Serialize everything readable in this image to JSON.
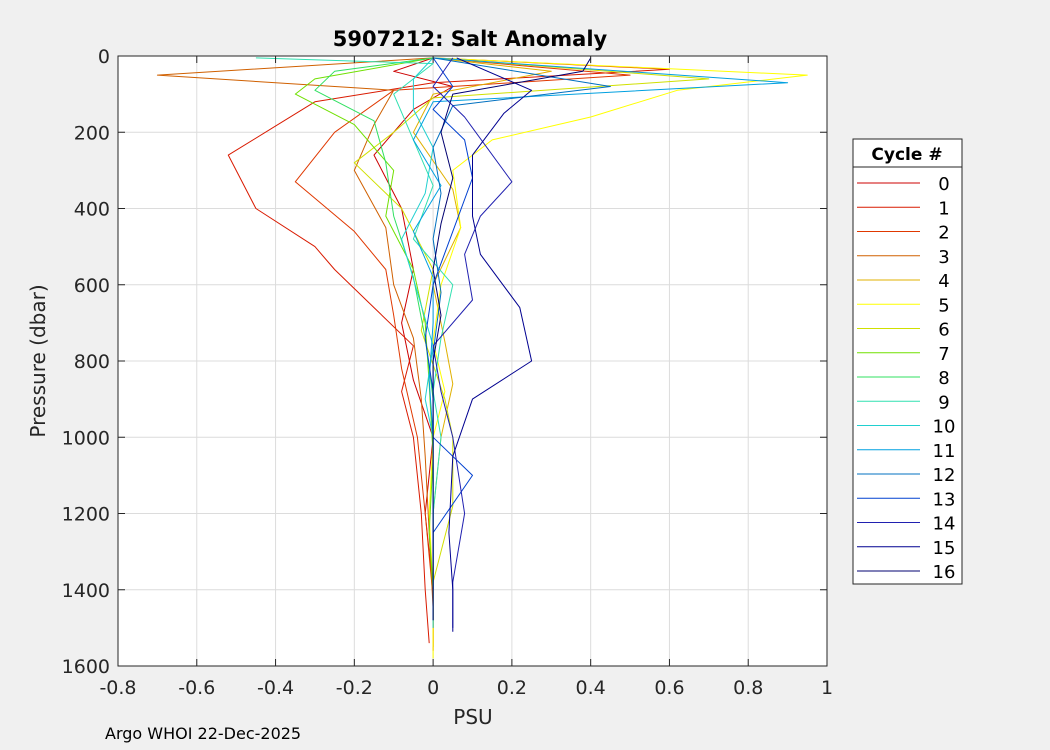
{
  "footer": {
    "text": "Argo WHOI 22-Dec-2025"
  },
  "chart_data": {
    "type": "line",
    "title": "5907212: Salt Anomaly",
    "xlabel": "PSU",
    "ylabel": "Pressure (dbar)",
    "xlim": [
      -0.8,
      1
    ],
    "ylim": [
      0,
      1600
    ],
    "y_reversed": true,
    "grid": true,
    "x_ticks": [
      -0.8,
      -0.6,
      -0.4,
      -0.2,
      0,
      0.2,
      0.4,
      0.6,
      0.8,
      1
    ],
    "x_tick_labels": [
      "-0.8",
      "-0.6",
      "-0.4",
      "-0.2",
      "0",
      "0.2",
      "0.4",
      "0.6",
      "0.8",
      "1"
    ],
    "y_ticks": [
      0,
      200,
      400,
      600,
      800,
      1000,
      1200,
      1400,
      1600
    ],
    "y_tick_labels": [
      "0",
      "200",
      "400",
      "600",
      "800",
      "1000",
      "1200",
      "1400",
      "1600"
    ],
    "legend": {
      "title": "Cycle #",
      "placement": "outside-right"
    },
    "series": [
      {
        "name": "0",
        "color": "#cc0000",
        "points": [
          [
            0.0,
            5
          ],
          [
            -0.1,
            40
          ],
          [
            0.05,
            80
          ],
          [
            -0.05,
            140
          ],
          [
            -0.15,
            260
          ],
          [
            -0.08,
            400
          ],
          [
            -0.05,
            560
          ],
          [
            -0.08,
            700
          ],
          [
            -0.05,
            850
          ],
          [
            0.0,
            1000
          ],
          [
            -0.02,
            1200
          ],
          [
            0.0,
            1400
          ],
          [
            0.0,
            1560
          ]
        ]
      },
      {
        "name": "1",
        "color": "#d91a00",
        "points": [
          [
            0.0,
            5
          ],
          [
            0.6,
            35
          ],
          [
            0.0,
            70
          ],
          [
            -0.3,
            120
          ],
          [
            -0.52,
            260
          ],
          [
            -0.45,
            400
          ],
          [
            -0.3,
            500
          ],
          [
            -0.25,
            560
          ],
          [
            -0.15,
            660
          ],
          [
            -0.05,
            760
          ],
          [
            -0.08,
            880
          ],
          [
            -0.05,
            1000
          ],
          [
            -0.03,
            1200
          ],
          [
            -0.02,
            1400
          ],
          [
            -0.01,
            1540
          ]
        ]
      },
      {
        "name": "2",
        "color": "#e03800",
        "points": [
          [
            0.0,
            5
          ],
          [
            0.5,
            50
          ],
          [
            -0.1,
            90
          ],
          [
            -0.25,
            200
          ],
          [
            -0.35,
            330
          ],
          [
            -0.2,
            460
          ],
          [
            -0.12,
            560
          ],
          [
            -0.1,
            680
          ],
          [
            -0.08,
            820
          ],
          [
            -0.04,
            1000
          ],
          [
            -0.02,
            1200
          ],
          [
            0.0,
            1420
          ],
          [
            0.0,
            1550
          ]
        ]
      },
      {
        "name": "3",
        "color": "#d06000",
        "points": [
          [
            0.0,
            5
          ],
          [
            -0.7,
            50
          ],
          [
            -0.1,
            90
          ],
          [
            -0.15,
            180
          ],
          [
            -0.2,
            300
          ],
          [
            -0.12,
            450
          ],
          [
            -0.1,
            600
          ],
          [
            -0.05,
            740
          ],
          [
            -0.03,
            900
          ],
          [
            -0.02,
            1050
          ],
          [
            -0.01,
            1250
          ],
          [
            0.0,
            1450
          ],
          [
            0.0,
            1560
          ]
        ]
      },
      {
        "name": "4",
        "color": "#e0b000",
        "points": [
          [
            0.0,
            5
          ],
          [
            0.3,
            40
          ],
          [
            0.0,
            100
          ],
          [
            -0.05,
            200
          ],
          [
            0.05,
            350
          ],
          [
            0.07,
            450
          ],
          [
            0.0,
            600
          ],
          [
            0.03,
            750
          ],
          [
            0.05,
            860
          ],
          [
            0.02,
            1000
          ],
          [
            0.0,
            1200
          ],
          [
            0.0,
            1400
          ],
          [
            0.0,
            1550
          ]
        ]
      },
      {
        "name": "5",
        "color": "#ffff00",
        "points": [
          [
            0.0,
            5
          ],
          [
            0.95,
            50
          ],
          [
            0.62,
            90
          ],
          [
            0.4,
            160
          ],
          [
            0.15,
            220
          ],
          [
            0.05,
            300
          ],
          [
            0.07,
            450
          ],
          [
            0.02,
            600
          ],
          [
            0.0,
            750
          ],
          [
            0.03,
            880
          ],
          [
            0.0,
            1000
          ],
          [
            -0.01,
            1200
          ],
          [
            0.0,
            1400
          ],
          [
            0.0,
            1580
          ]
        ]
      },
      {
        "name": "6",
        "color": "#d0e000",
        "points": [
          [
            0.0,
            5
          ],
          [
            0.7,
            60
          ],
          [
            0.0,
            110
          ],
          [
            -0.1,
            200
          ],
          [
            -0.2,
            280
          ],
          [
            -0.08,
            400
          ],
          [
            0.0,
            560
          ],
          [
            -0.03,
            720
          ],
          [
            0.03,
            900
          ],
          [
            0.05,
            1000
          ],
          [
            0.05,
            1180
          ],
          [
            0.0,
            1380
          ],
          [
            0.0,
            1500
          ]
        ]
      },
      {
        "name": "7",
        "color": "#70e000",
        "points": [
          [
            0.0,
            5
          ],
          [
            -0.3,
            60
          ],
          [
            -0.35,
            100
          ],
          [
            -0.2,
            180
          ],
          [
            -0.1,
            300
          ],
          [
            -0.12,
            420
          ],
          [
            -0.05,
            560
          ],
          [
            -0.02,
            700
          ],
          [
            -0.01,
            860
          ],
          [
            0.0,
            1050
          ],
          [
            -0.01,
            1250
          ],
          [
            0.0,
            1400
          ]
        ]
      },
      {
        "name": "8",
        "color": "#30e060",
        "points": [
          [
            0.0,
            5
          ],
          [
            -0.25,
            40
          ],
          [
            -0.3,
            90
          ],
          [
            -0.15,
            170
          ],
          [
            -0.12,
            280
          ],
          [
            -0.1,
            420
          ],
          [
            -0.05,
            580
          ],
          [
            -0.02,
            740
          ],
          [
            0.0,
            900
          ],
          [
            0.0,
            1050
          ],
          [
            0.0,
            1250
          ],
          [
            0.0,
            1420
          ]
        ]
      },
      {
        "name": "9",
        "color": "#30e0b0",
        "points": [
          [
            -0.45,
            5
          ],
          [
            0.0,
            20
          ],
          [
            -0.1,
            100
          ],
          [
            -0.05,
            220
          ],
          [
            0.0,
            340
          ],
          [
            -0.05,
            480
          ],
          [
            0.05,
            600
          ],
          [
            0.02,
            740
          ],
          [
            0.0,
            880
          ],
          [
            0.02,
            1000
          ],
          [
            0.0,
            1200
          ],
          [
            0.0,
            1400
          ],
          [
            0.0,
            1480
          ]
        ]
      },
      {
        "name": "10",
        "color": "#20d0d0",
        "points": [
          [
            0.0,
            5
          ],
          [
            -0.05,
            60
          ],
          [
            -0.05,
            140
          ],
          [
            0.0,
            240
          ],
          [
            -0.02,
            360
          ],
          [
            -0.08,
            480
          ],
          [
            -0.04,
            620
          ],
          [
            0.0,
            760
          ],
          [
            -0.02,
            900
          ],
          [
            0.0,
            1000
          ],
          [
            0.0,
            1200
          ],
          [
            0.0,
            1400
          ],
          [
            0.0,
            1500
          ]
        ]
      },
      {
        "name": "11",
        "color": "#00a0e0",
        "points": [
          [
            0.0,
            5
          ],
          [
            0.9,
            70
          ],
          [
            0.0,
            120
          ],
          [
            -0.05,
            220
          ],
          [
            0.02,
            340
          ],
          [
            -0.05,
            460
          ],
          [
            0.0,
            580
          ],
          [
            0.0,
            700
          ],
          [
            -0.01,
            850
          ],
          [
            0.0,
            1000
          ],
          [
            0.0,
            1200
          ],
          [
            0.0,
            1350
          ],
          [
            0.0,
            1480
          ]
        ]
      },
      {
        "name": "12",
        "color": "#0070c0",
        "points": [
          [
            0.0,
            5
          ],
          [
            0.45,
            80
          ],
          [
            0.05,
            130
          ],
          [
            0.0,
            240
          ],
          [
            0.02,
            360
          ],
          [
            0.0,
            480
          ],
          [
            0.02,
            620
          ],
          [
            0.0,
            780
          ],
          [
            0.0,
            920
          ],
          [
            0.0,
            1050
          ],
          [
            0.0,
            1200
          ],
          [
            0.0,
            1400
          ]
        ]
      },
      {
        "name": "13",
        "color": "#0040d0",
        "points": [
          [
            0.0,
            5
          ],
          [
            0.05,
            80
          ],
          [
            0.0,
            140
          ],
          [
            0.08,
            220
          ],
          [
            0.1,
            320
          ],
          [
            0.05,
            460
          ],
          [
            0.0,
            600
          ],
          [
            -0.02,
            740
          ],
          [
            0.0,
            880
          ],
          [
            0.0,
            1000
          ],
          [
            0.1,
            1100
          ],
          [
            0.0,
            1250
          ],
          [
            0.0,
            1400
          ]
        ]
      },
      {
        "name": "14",
        "color": "#2020b0",
        "points": [
          [
            0.05,
            5
          ],
          [
            0.0,
            80
          ],
          [
            0.08,
            160
          ],
          [
            0.2,
            330
          ],
          [
            0.12,
            420
          ],
          [
            0.08,
            520
          ],
          [
            0.1,
            640
          ],
          [
            0.0,
            760
          ],
          [
            0.02,
            880
          ],
          [
            0.05,
            1000
          ],
          [
            0.08,
            1200
          ],
          [
            0.05,
            1380
          ],
          [
            0.05,
            1500
          ]
        ]
      },
      {
        "name": "15",
        "color": "#000090",
        "points": [
          [
            0.06,
            5
          ],
          [
            0.25,
            90
          ],
          [
            0.18,
            150
          ],
          [
            0.1,
            260
          ],
          [
            0.1,
            420
          ],
          [
            0.12,
            520
          ],
          [
            0.22,
            660
          ],
          [
            0.25,
            800
          ],
          [
            0.1,
            900
          ],
          [
            0.05,
            1050
          ],
          [
            0.04,
            1250
          ],
          [
            0.05,
            1400
          ],
          [
            0.05,
            1510
          ]
        ]
      },
      {
        "name": "16",
        "color": "#000070",
        "points": [
          [
            0.4,
            5
          ],
          [
            0.38,
            40
          ],
          [
            0.05,
            100
          ],
          [
            0.02,
            200
          ],
          [
            0.05,
            320
          ],
          [
            0.02,
            440
          ],
          [
            0.0,
            560
          ],
          [
            0.02,
            680
          ],
          [
            0.0,
            800
          ],
          [
            0.0,
            950
          ],
          [
            0.0,
            1150
          ],
          [
            0.0,
            1350
          ],
          [
            0.0,
            1480
          ]
        ]
      }
    ]
  }
}
